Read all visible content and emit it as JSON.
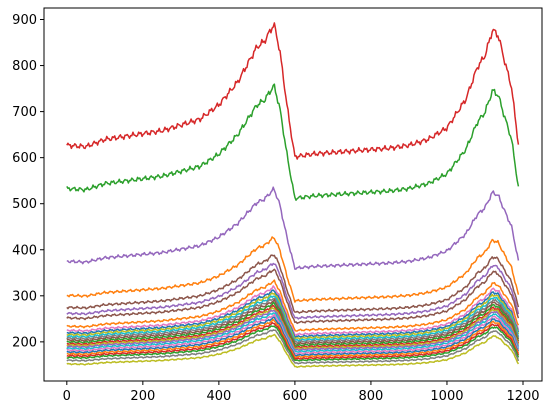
{
  "chart_data": {
    "type": "line",
    "title": "",
    "xlabel": "",
    "ylabel": "",
    "xlim": [
      -60,
      1250
    ],
    "ylim": [
      115,
      925
    ],
    "xticks": [
      0,
      200,
      400,
      600,
      800,
      1000,
      1200
    ],
    "yticks": [
      200,
      300,
      400,
      500,
      600,
      700,
      800,
      900
    ],
    "grid": false,
    "legend": "none",
    "shape": {
      "x": [
        0,
        50,
        100,
        150,
        200,
        250,
        300,
        350,
        400,
        450,
        500,
        520,
        545,
        560,
        580,
        595,
        600,
        650,
        700,
        750,
        800,
        850,
        900,
        950,
        1000,
        1050,
        1080,
        1100,
        1120,
        1135,
        1150,
        1170,
        1190
      ],
      "factor": [
        1.0,
        0.995,
        1.02,
        1.03,
        1.04,
        1.05,
        1.07,
        1.09,
        1.14,
        1.22,
        1.34,
        1.36,
        1.42,
        1.33,
        1.13,
        1.0,
        0.96,
        0.97,
        0.975,
        0.98,
        0.985,
        0.99,
        1.0,
        1.02,
        1.06,
        1.16,
        1.27,
        1.31,
        1.4,
        1.38,
        1.3,
        1.2,
        0.98
      ]
    },
    "series": [
      {
        "start": 627,
        "color": "#d62728"
      },
      {
        "start": 533,
        "color": "#2ca02c"
      },
      {
        "start": 375,
        "color": "#9467bd"
      },
      {
        "start": 301,
        "color": "#ff7f0e"
      },
      {
        "start": 275,
        "color": "#8c564b"
      },
      {
        "start": 262,
        "color": "#9467bd"
      },
      {
        "start": 252,
        "color": "#8c564b"
      },
      {
        "start": 234,
        "color": "#ff7f0e"
      },
      {
        "start": 225,
        "color": "#e377c2"
      },
      {
        "start": 220,
        "color": "#1f77b4"
      },
      {
        "start": 216,
        "color": "#bcbd22"
      },
      {
        "start": 212,
        "color": "#17becf"
      },
      {
        "start": 208,
        "color": "#7f7f7f"
      },
      {
        "start": 204,
        "color": "#8c564b"
      },
      {
        "start": 200,
        "color": "#2ca02c"
      },
      {
        "start": 196,
        "color": "#d62728"
      },
      {
        "start": 193,
        "color": "#bcbd22"
      },
      {
        "start": 190,
        "color": "#9467bd"
      },
      {
        "start": 186,
        "color": "#17becf"
      },
      {
        "start": 182,
        "color": "#e377c2"
      },
      {
        "start": 178,
        "color": "#1f77b4"
      },
      {
        "start": 174,
        "color": "#ff7f0e"
      },
      {
        "start": 170,
        "color": "#d62728"
      },
      {
        "start": 166,
        "color": "#2ca02c"
      },
      {
        "start": 160,
        "color": "#7f7f7f"
      },
      {
        "start": 152,
        "color": "#bcbd22"
      }
    ]
  }
}
